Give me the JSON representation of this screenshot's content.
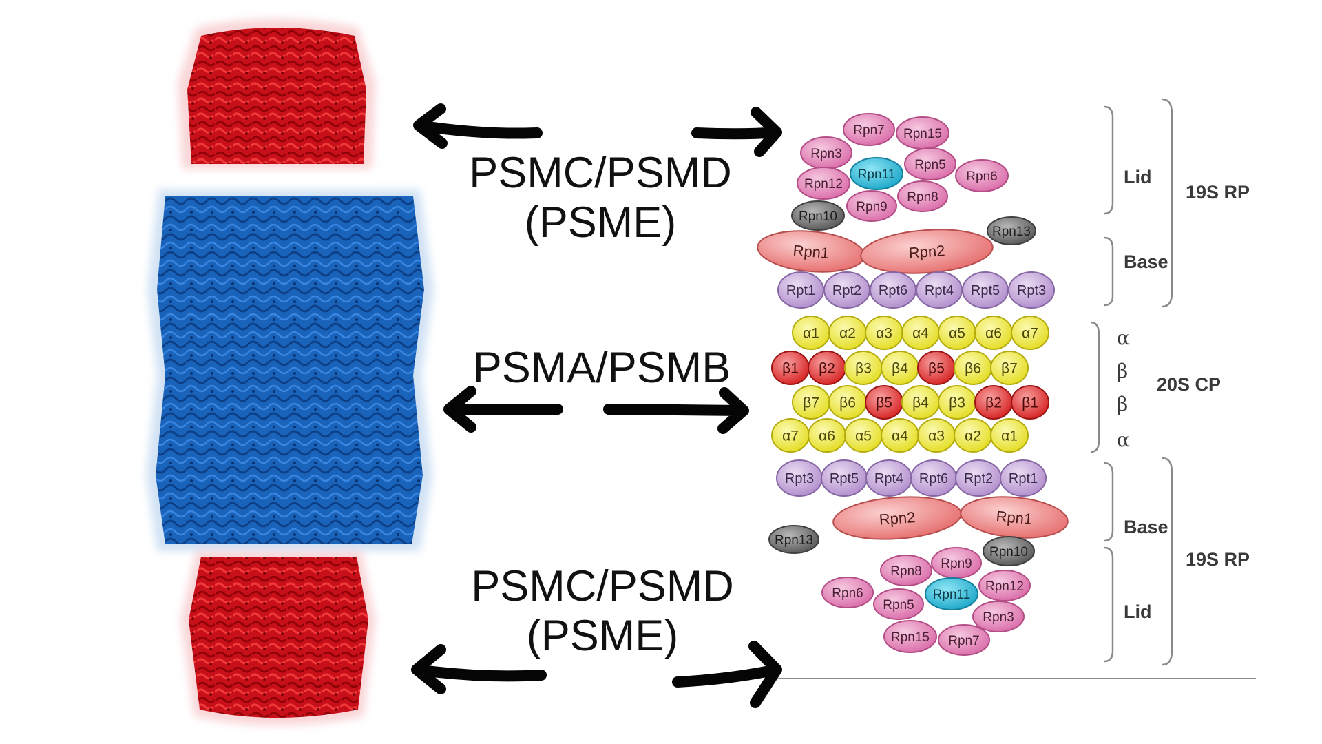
{
  "labels": {
    "top": [
      "PSMC/PSMD",
      "(PSME)"
    ],
    "middle": "PSMA/PSMB",
    "bottom": [
      "PSMC/PSMD",
      "(PSME)"
    ]
  },
  "schematic": {
    "top_lid": [
      {
        "label": "Rpn7",
        "color": "pink"
      },
      {
        "label": "Rpn15",
        "color": "pink"
      },
      {
        "label": "Rpn3",
        "color": "pink"
      },
      {
        "label": "Rpn11",
        "color": "cyan"
      },
      {
        "label": "Rpn5",
        "color": "pink"
      },
      {
        "label": "Rpn6",
        "color": "pink"
      },
      {
        "label": "Rpn12",
        "color": "pink"
      },
      {
        "label": "Rpn9",
        "color": "pink"
      },
      {
        "label": "Rpn8",
        "color": "pink"
      },
      {
        "label": "Rpn10",
        "color": "gray"
      },
      {
        "label": "Rpn13",
        "color": "gray"
      }
    ],
    "top_base_large": [
      "Rpn1",
      "Rpn2"
    ],
    "rpt_top": [
      "Rpt1",
      "Rpt2",
      "Rpt6",
      "Rpt4",
      "Rpt5",
      "Rpt3"
    ],
    "alpha_top": [
      "α1",
      "α2",
      "α3",
      "α4",
      "α5",
      "α6",
      "α7"
    ],
    "beta_top": [
      {
        "label": "β1",
        "red": true
      },
      {
        "label": "β2",
        "red": true
      },
      {
        "label": "β3",
        "red": false
      },
      {
        "label": "β4",
        "red": false
      },
      {
        "label": "β5",
        "red": true
      },
      {
        "label": "β6",
        "red": false
      },
      {
        "label": "β7",
        "red": false
      }
    ],
    "beta_bottom": [
      {
        "label": "β7",
        "red": false
      },
      {
        "label": "β6",
        "red": false
      },
      {
        "label": "β5",
        "red": true
      },
      {
        "label": "β4",
        "red": false
      },
      {
        "label": "β3",
        "red": false
      },
      {
        "label": "β2",
        "red": true
      },
      {
        "label": "β1",
        "red": true
      }
    ],
    "alpha_bottom": [
      "α7",
      "α6",
      "α5",
      "α4",
      "α3",
      "α2",
      "α1"
    ],
    "rpt_bottom": [
      "Rpt3",
      "Rpt5",
      "Rpt4",
      "Rpt6",
      "Rpt2",
      "Rpt1"
    ],
    "bottom_base_large": [
      "Rpn2",
      "Rpn1"
    ],
    "bottom_lid": [
      {
        "label": "Rpn13",
        "color": "gray"
      },
      {
        "label": "Rpn10",
        "color": "gray"
      },
      {
        "label": "Rpn8",
        "color": "pink"
      },
      {
        "label": "Rpn9",
        "color": "pink"
      },
      {
        "label": "Rpn6",
        "color": "pink"
      },
      {
        "label": "Rpn11",
        "color": "cyan"
      },
      {
        "label": "Rpn12",
        "color": "pink"
      },
      {
        "label": "Rpn5",
        "color": "pink"
      },
      {
        "label": "Rpn3",
        "color": "pink"
      },
      {
        "label": "Rpn15",
        "color": "pink"
      },
      {
        "label": "Rpn7",
        "color": "pink"
      }
    ]
  },
  "brackets": {
    "top_lid": "Lid",
    "top_base": "Base",
    "top_rp": "19S RP",
    "greek": [
      "α",
      "β",
      "β",
      "α"
    ],
    "core": "20S CP",
    "bottom_base": "Base",
    "bottom_lid": "Lid",
    "bottom_rp": "19S RP"
  },
  "colors": {
    "red_cap": "#c8101a",
    "blue_core": "#1560b8",
    "pink": "#e58fbf",
    "cyan": "#22b8d6",
    "gray": "#6f6f6f",
    "violet": "#c5a5d9",
    "yellow": "#f0ec3c",
    "red_beta": "#e23232",
    "salmon": "#f08a8a"
  }
}
